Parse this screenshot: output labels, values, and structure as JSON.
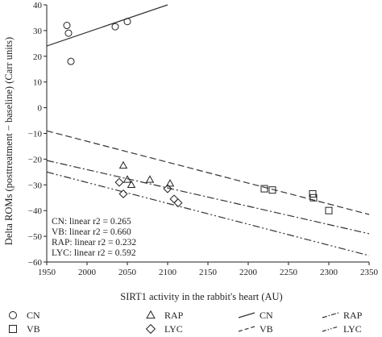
{
  "chart_data": {
    "type": "scatter",
    "xlabel": "SIRT1 activity in the rabbit's heart (AU)",
    "ylabel": "Delta ROMs (posttreatment − baseline) (Carr units)",
    "xlim": [
      1950,
      2350
    ],
    "ylim": [
      -60,
      40
    ],
    "xticks": [
      1950,
      2000,
      2050,
      2100,
      2150,
      2200,
      2250,
      2300,
      2350
    ],
    "yticks": [
      -60,
      -50,
      -40,
      -30,
      -20,
      -10,
      0,
      10,
      20,
      30,
      40
    ],
    "xtick_labels": [
      "1950",
      "2000",
      "2050",
      "2100",
      "2150",
      "2200",
      "2250",
      "2300",
      "2350"
    ],
    "ytick_labels": [
      "−60",
      "−50",
      "−40",
      "−30",
      "−20",
      "−10",
      "0",
      "10",
      "20",
      "30",
      "40"
    ],
    "grid": false,
    "series": [
      {
        "name": "CN",
        "marker": "circle",
        "points": [
          [
            1975,
            32
          ],
          [
            1977,
            29
          ],
          [
            1980,
            18
          ],
          [
            2035,
            31.5
          ],
          [
            2050,
            33.5
          ]
        ]
      },
      {
        "name": "VB",
        "marker": "square",
        "points": [
          [
            2220,
            -31.5
          ],
          [
            2230,
            -32
          ],
          [
            2280,
            -33.5
          ],
          [
            2281,
            -35
          ],
          [
            2300,
            -40
          ]
        ]
      },
      {
        "name": "RAP",
        "marker": "triangle",
        "points": [
          [
            2045,
            -22.5
          ],
          [
            2050,
            -28
          ],
          [
            2055,
            -30
          ],
          [
            2078,
            -28
          ],
          [
            2103,
            -29.5
          ]
        ]
      },
      {
        "name": "LYC",
        "marker": "diamond",
        "points": [
          [
            2040,
            -29
          ],
          [
            2045,
            -33.5
          ],
          [
            2100,
            -31.5
          ],
          [
            2108,
            -35.5
          ],
          [
            2113,
            -37
          ]
        ]
      }
    ],
    "fits": [
      {
        "name": "CN",
        "dash": "solid",
        "x": [
          1950,
          2100
        ],
        "y": [
          24,
          40
        ]
      },
      {
        "name": "VB",
        "dash": "dashed",
        "x": [
          1950,
          2350
        ],
        "y": [
          -9,
          -41.5
        ]
      },
      {
        "name": "RAP",
        "dash": "dashdot",
        "x": [
          1950,
          2350
        ],
        "y": [
          -20.5,
          -49
        ]
      },
      {
        "name": "LYC",
        "dash": "dashdotdot",
        "x": [
          1950,
          2350
        ],
        "y": [
          -25,
          -57.5
        ]
      }
    ],
    "annotations": [
      "CN: linear r2 = 0.265",
      "VB: linear r2 = 0.660",
      "RAP: linear r2 = 0.232",
      "LYC: linear r2 = 0.592"
    ],
    "legend": {
      "placement": "bottom",
      "markers": [
        {
          "label": "CN",
          "marker": "circle"
        },
        {
          "label": "RAP",
          "marker": "triangle"
        },
        {
          "label": "VB",
          "marker": "square"
        },
        {
          "label": "LYC",
          "marker": "diamond"
        }
      ],
      "lines": [
        {
          "label": "CN",
          "dash": "solid"
        },
        {
          "label": "RAP",
          "dash": "dashdot"
        },
        {
          "label": "VB",
          "dash": "dashed"
        },
        {
          "label": "LYC",
          "dash": "dashdotdot"
        }
      ]
    }
  }
}
